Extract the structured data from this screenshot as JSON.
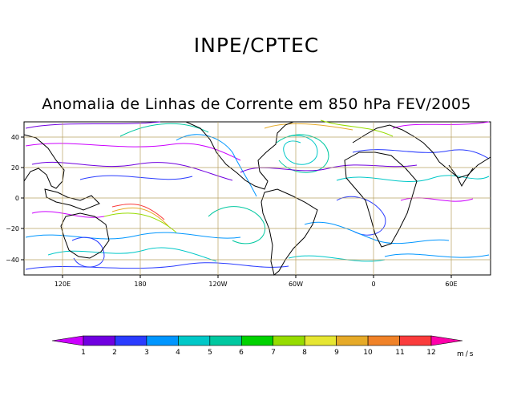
{
  "header": {
    "title": "INPE/CPTEC",
    "subtitle": "Anomalia de Linhas de Corrente em 850 hPa FEV/2005"
  },
  "map": {
    "lat_ticks": [
      "40",
      "20",
      "0",
      "−20",
      "−40"
    ],
    "lon_ticks": [
      "120E",
      "180",
      "120W",
      "60W",
      "0",
      "60E"
    ],
    "grid_color": "#b8a060"
  },
  "colorbar": {
    "labels": [
      "1",
      "2",
      "3",
      "4",
      "5",
      "6",
      "7",
      "8",
      "9",
      "10",
      "11",
      "12"
    ],
    "unit": "m/s",
    "colors": [
      "#cc00ff",
      "#7000e0",
      "#2a3cff",
      "#0096ff",
      "#00c8c8",
      "#00c8a0",
      "#00d200",
      "#96dc00",
      "#e6e632",
      "#e6aa28",
      "#f08228",
      "#fa3c3c",
      "#ff00aa"
    ]
  }
}
